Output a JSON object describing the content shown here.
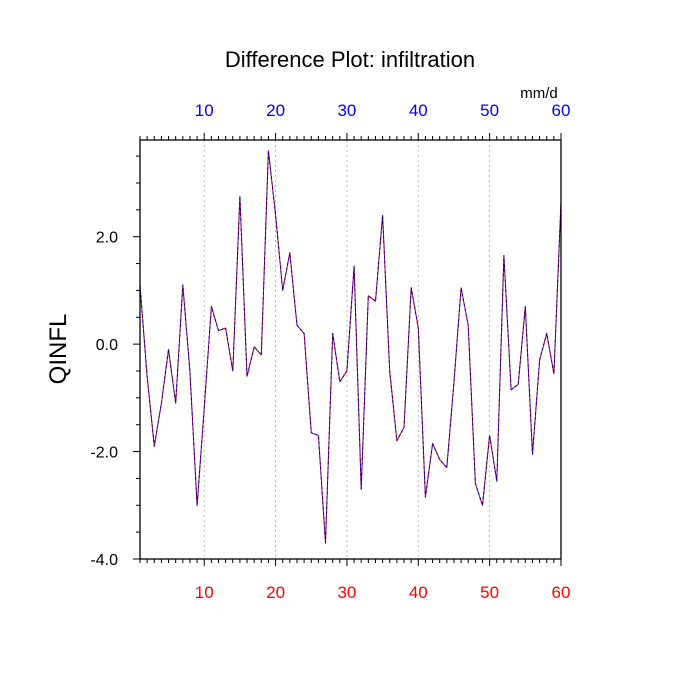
{
  "chart_data": {
    "type": "line",
    "title": "Difference Plot: infiltration",
    "units": "mm/d",
    "ylabel": "QINFL",
    "xlim": [
      1,
      60
    ],
    "ylim": [
      -4.0,
      3.8
    ],
    "yticks": [
      -4.0,
      -2.0,
      0.0,
      2.0
    ],
    "ytick_labels": [
      "-4.0",
      "-2.0",
      "0.0",
      "2.0"
    ],
    "xticks": [
      10,
      20,
      30,
      40,
      50,
      60
    ],
    "xtick_labels": [
      "10",
      "20",
      "30",
      "40",
      "50",
      "60"
    ],
    "grid": "vertical dashed lines at top-axis ticks",
    "colors": {
      "bottom_ticks": "#ff0000",
      "top_ticks": "#0000ff",
      "line_solid": "#cc0000",
      "line_dashed": "#0000cc",
      "grid": "#aaaaaa"
    },
    "series": [
      {
        "x": [
          1,
          2,
          3,
          4,
          5,
          6,
          7,
          8,
          9,
          10,
          11,
          12,
          13,
          14,
          15,
          16,
          17,
          18,
          19,
          20,
          21,
          22,
          23,
          24,
          25,
          26,
          27,
          28,
          29,
          30,
          31,
          32,
          33,
          34,
          35,
          36,
          37,
          38,
          39,
          40,
          41,
          42,
          43,
          44,
          45,
          46,
          47,
          48,
          49,
          50,
          51,
          52,
          53,
          54,
          55,
          56,
          57,
          58,
          59,
          60
        ],
        "y": [
          1.1,
          -0.6,
          -1.9,
          -1.1,
          -0.1,
          -1.1,
          1.1,
          -0.5,
          -3.0,
          -1.2,
          0.7,
          0.25,
          0.3,
          -0.5,
          2.75,
          -0.6,
          -0.05,
          -0.2,
          3.6,
          2.4,
          1.0,
          1.7,
          0.35,
          0.2,
          -1.65,
          -1.7,
          -3.7,
          0.2,
          -0.7,
          -0.5,
          1.45,
          -2.7,
          0.9,
          0.8,
          2.4,
          -0.5,
          -1.8,
          -1.55,
          1.05,
          0.3,
          -2.85,
          -1.85,
          -2.15,
          -2.3,
          -0.7,
          1.05,
          0.35,
          -2.6,
          -3.0,
          -1.7,
          -2.55,
          1.65,
          -0.85,
          -0.75,
          0.7,
          -2.05,
          -0.3,
          0.2,
          -0.55,
          2.65
        ]
      }
    ]
  }
}
